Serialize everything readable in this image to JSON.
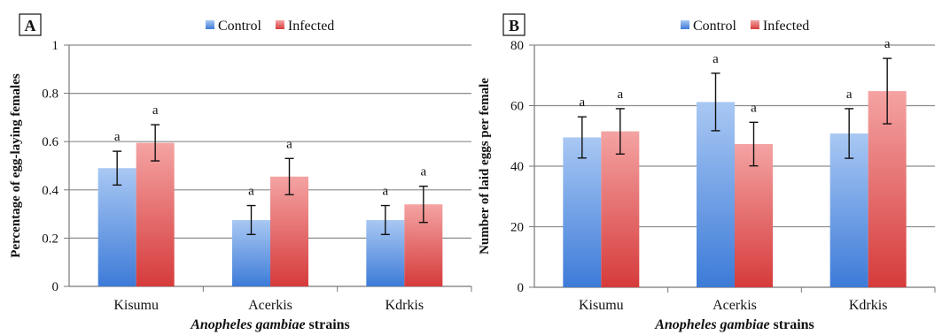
{
  "colors": {
    "control_top": "#a9c8f3",
    "control_bottom": "#3d7bd8",
    "infected_top": "#f4a3a3",
    "infected_bottom": "#d63b3b",
    "grid": "#8c8c8c",
    "axis": "#777777"
  },
  "chart_data": [
    {
      "type": "bar",
      "panel_label": "A",
      "categories": [
        "Kisumu",
        "Acerkis",
        "Kdrkis"
      ],
      "series": [
        {
          "name": "Control",
          "values": [
            0.49,
            0.275,
            0.275
          ],
          "errors": [
            0.07,
            0.06,
            0.06
          ],
          "sig": [
            "a",
            "a",
            "a"
          ]
        },
        {
          "name": "Infected",
          "values": [
            0.595,
            0.455,
            0.34
          ],
          "errors": [
            0.075,
            0.075,
            0.075
          ],
          "sig": [
            "a",
            "a",
            "a"
          ]
        }
      ],
      "ylabel": "Percentage of egg-laying females",
      "xlabel_italic": "Anopheles gambiae",
      "xlabel_rest": " strains",
      "ylim": [
        0,
        1
      ],
      "yticks": [
        0,
        0.2,
        0.4,
        0.6,
        0.8,
        1
      ],
      "ytick_labels": [
        "0",
        "0.2",
        "0.4",
        "0.6",
        "0.8",
        "1"
      ],
      "grid": true,
      "legend": "top"
    },
    {
      "type": "bar",
      "panel_label": "B",
      "categories": [
        "Kisumu",
        "Acerkis",
        "Kdrkis"
      ],
      "series": [
        {
          "name": "Control",
          "values": [
            49.5,
            61.2,
            50.8
          ],
          "errors": [
            6.8,
            9.5,
            8.2
          ],
          "sig": [
            "a",
            "a",
            "a"
          ]
        },
        {
          "name": "Infected",
          "values": [
            51.5,
            47.3,
            64.8
          ],
          "errors": [
            7.5,
            7.2,
            10.8
          ],
          "sig": [
            "a",
            "a",
            "a"
          ]
        }
      ],
      "ylabel": "Number of laid eggs per female",
      "xlabel_italic": "Anopheles gambiae",
      "xlabel_rest": " strains",
      "ylim": [
        0,
        80
      ],
      "yticks": [
        0,
        20,
        40,
        60,
        80
      ],
      "ytick_labels": [
        "0",
        "20",
        "40",
        "60",
        "80"
      ],
      "grid": true,
      "legend": "top"
    }
  ]
}
